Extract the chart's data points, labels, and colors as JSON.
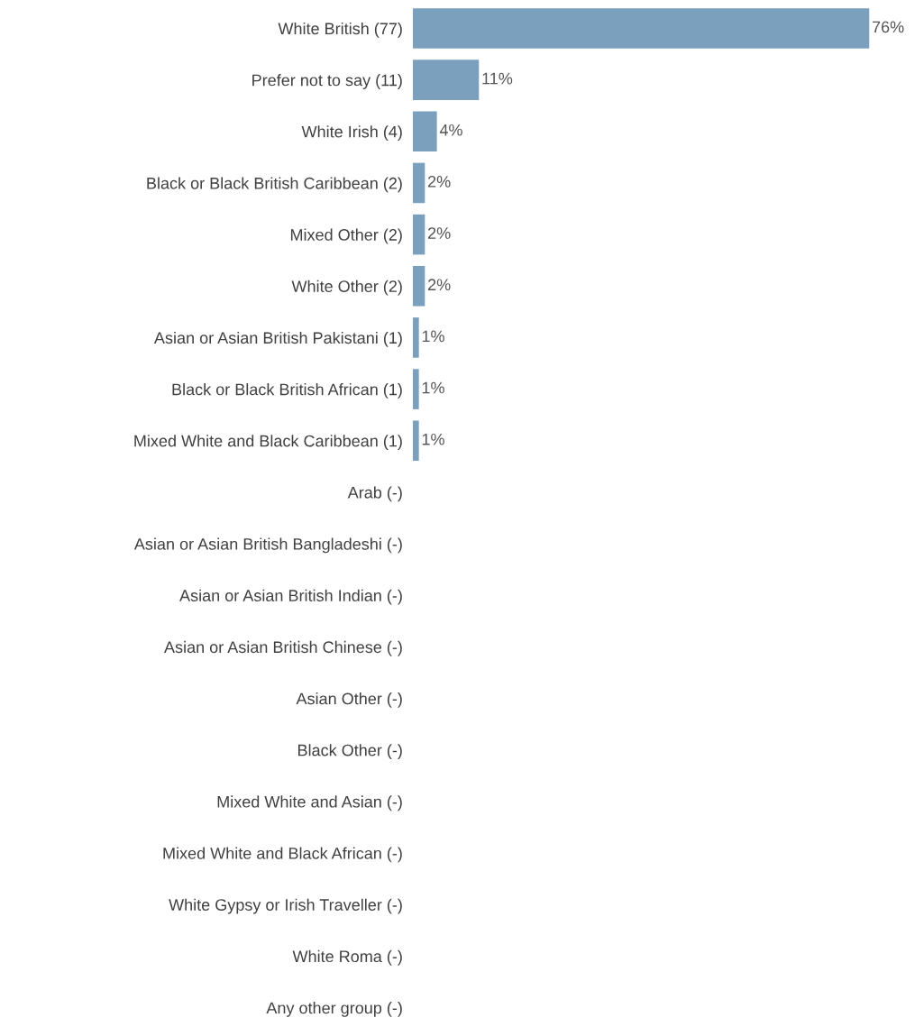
{
  "chart_data": {
    "type": "bar",
    "orientation": "horizontal",
    "categories": [
      "White British (77)",
      "Prefer not to say (11)",
      "White Irish (4)",
      "Black or Black British Caribbean (2)",
      "Mixed Other (2)",
      "White Other (2)",
      "Asian or Asian British Pakistani (1)",
      "Black or Black British African (1)",
      "Mixed White and Black Caribbean (1)",
      "Arab (-)",
      "Asian or Asian British Bangladeshi (-)",
      "Asian or Asian British Indian (-)",
      "Asian or Asian British Chinese (-)",
      "Asian Other (-)",
      "Black Other (-)",
      "Mixed White and Asian (-)",
      "Mixed White and Black African (-)",
      "White Gypsy or Irish Traveller (-)",
      "White Roma (-)",
      "Any other group (-)"
    ],
    "values": [
      76,
      11,
      4,
      2,
      2,
      2,
      1,
      1,
      1,
      0,
      0,
      0,
      0,
      0,
      0,
      0,
      0,
      0,
      0,
      0
    ],
    "value_labels": [
      "76%",
      "11%",
      "4%",
      "2%",
      "2%",
      "2%",
      "1%",
      "1%",
      "1%",
      null,
      null,
      null,
      null,
      null,
      null,
      null,
      null,
      null,
      null,
      null
    ],
    "color": "#7aa0be",
    "grid": false,
    "legend": false,
    "tick_labels": "y"
  }
}
